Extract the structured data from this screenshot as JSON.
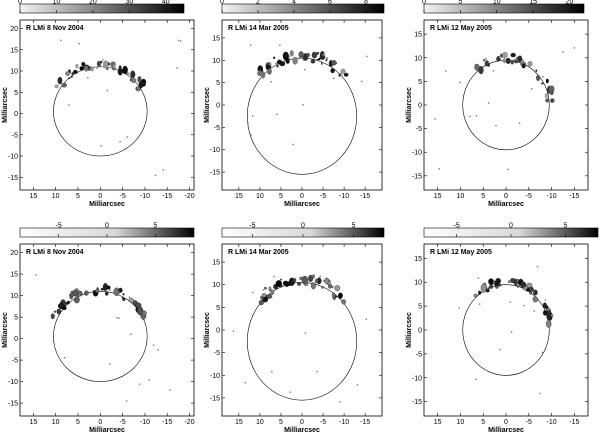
{
  "figure": {
    "panels": [
      {
        "id": "top-left",
        "title": "R LMi  8 Nov 2004",
        "colorbar": {
          "ticks": [
            "0",
            "10",
            "20",
            "30",
            "40"
          ],
          "range": [
            0,
            45
          ],
          "mode": "positive"
        },
        "x_ticks": [
          "15",
          "10",
          "5",
          "0",
          "-5",
          "-10",
          "-15",
          "-20"
        ],
        "x_range": [
          18,
          -21
        ],
        "y_ticks": [
          "-15",
          "-10",
          "-5",
          "0",
          "5",
          "10",
          "15",
          "20"
        ],
        "y_range": [
          -18,
          22
        ],
        "xlabel": "Milliarcsec",
        "ylabel": "Milliarcsec",
        "ring": {
          "cx": 0,
          "cy": 0.5,
          "r": 10.5
        },
        "clump_arc": [
          30,
          150
        ]
      },
      {
        "id": "top-middle",
        "title": "R LMi  14 Mar 2005",
        "colorbar": {
          "ticks": [
            "0",
            "2",
            "4",
            "6",
            "8"
          ],
          "range": [
            0,
            9
          ],
          "mode": "positive"
        },
        "x_ticks": [
          "15",
          "10",
          "5",
          "0",
          "-5",
          "-10",
          "-15"
        ],
        "x_range": [
          19,
          -19
        ],
        "y_ticks": [
          "-15",
          "-10",
          "-5",
          "0",
          "5",
          "10",
          "15"
        ],
        "y_range": [
          -19,
          19
        ],
        "xlabel": "Milliarcsec",
        "ylabel": "Milliarcsec",
        "ring": {
          "cx": 0,
          "cy": -2.5,
          "r": 13
        },
        "clump_arc": [
          40,
          140
        ]
      },
      {
        "id": "top-right",
        "title": "R LMi 12 May 2005",
        "colorbar": {
          "ticks": [
            "0",
            "5",
            "10",
            "15",
            "20"
          ],
          "range": [
            0,
            22
          ],
          "mode": "positive"
        },
        "x_ticks": [
          "15",
          "10",
          "5",
          "0",
          "-5",
          "-10",
          "-15"
        ],
        "x_range": [
          18,
          -18
        ],
        "y_ticks": [
          "-15",
          "-10",
          "-5",
          "0",
          "5",
          "10",
          "15"
        ],
        "y_range": [
          -18,
          18
        ],
        "xlabel": "Milliarcsec",
        "ylabel": "Milliarcsec",
        "ring": {
          "cx": 0,
          "cy": 0,
          "r": 9.5
        },
        "clump_arc": [
          45,
          175
        ]
      },
      {
        "id": "bottom-left",
        "title": "R LMi  8 Nov 2004",
        "colorbar": {
          "ticks": [
            "-5",
            "0",
            "5"
          ],
          "range": [
            -9,
            9
          ],
          "mode": "diverging"
        },
        "x_ticks": [
          "15",
          "10",
          "5",
          "0",
          "-5",
          "-10",
          "-15",
          "-20"
        ],
        "x_range": [
          18,
          -21
        ],
        "y_ticks": [
          "-15",
          "-10",
          "-5",
          "0",
          "5",
          "10",
          "15",
          "20"
        ],
        "y_range": [
          -18,
          22
        ],
        "xlabel": "Milliarcsec",
        "ylabel": "Milliarcsec",
        "ring": {
          "cx": 0,
          "cy": 0.5,
          "r": 10.5
        },
        "clump_arc": [
          20,
          160
        ]
      },
      {
        "id": "bottom-middle",
        "title": "R LMi  14 Mar 2005",
        "colorbar": {
          "ticks": [
            "-5",
            "0",
            "5"
          ],
          "range": [
            -8,
            8
          ],
          "mode": "diverging"
        },
        "x_ticks": [
          "15",
          "10",
          "5",
          "0",
          "-5",
          "-10",
          "-15"
        ],
        "x_range": [
          19,
          -19
        ],
        "y_ticks": [
          "-15",
          "-10",
          "-5",
          "0",
          "5",
          "10",
          "15"
        ],
        "y_range": [
          -19,
          19
        ],
        "xlabel": "Milliarcsec",
        "ylabel": "Milliarcsec",
        "ring": {
          "cx": 0,
          "cy": -2.5,
          "r": 13
        },
        "clump_arc": [
          40,
          140
        ]
      },
      {
        "id": "bottom-right",
        "title": "R LMi 12 May 2005",
        "colorbar": {
          "ticks": [
            "-5",
            "0",
            "5"
          ],
          "range": [
            -8,
            8
          ],
          "mode": "diverging"
        },
        "x_ticks": [
          "15",
          "10",
          "5",
          "0",
          "-5",
          "-10",
          "-15"
        ],
        "x_range": [
          18,
          -18
        ],
        "y_ticks": [
          "-15",
          "-10",
          "-5",
          "0",
          "5",
          "10",
          "15"
        ],
        "y_range": [
          -18,
          18
        ],
        "xlabel": "Milliarcsec",
        "ylabel": "Milliarcsec",
        "ring": {
          "cx": 0,
          "cy": 0,
          "r": 9.5
        },
        "clump_arc": [
          45,
          175
        ]
      }
    ]
  }
}
